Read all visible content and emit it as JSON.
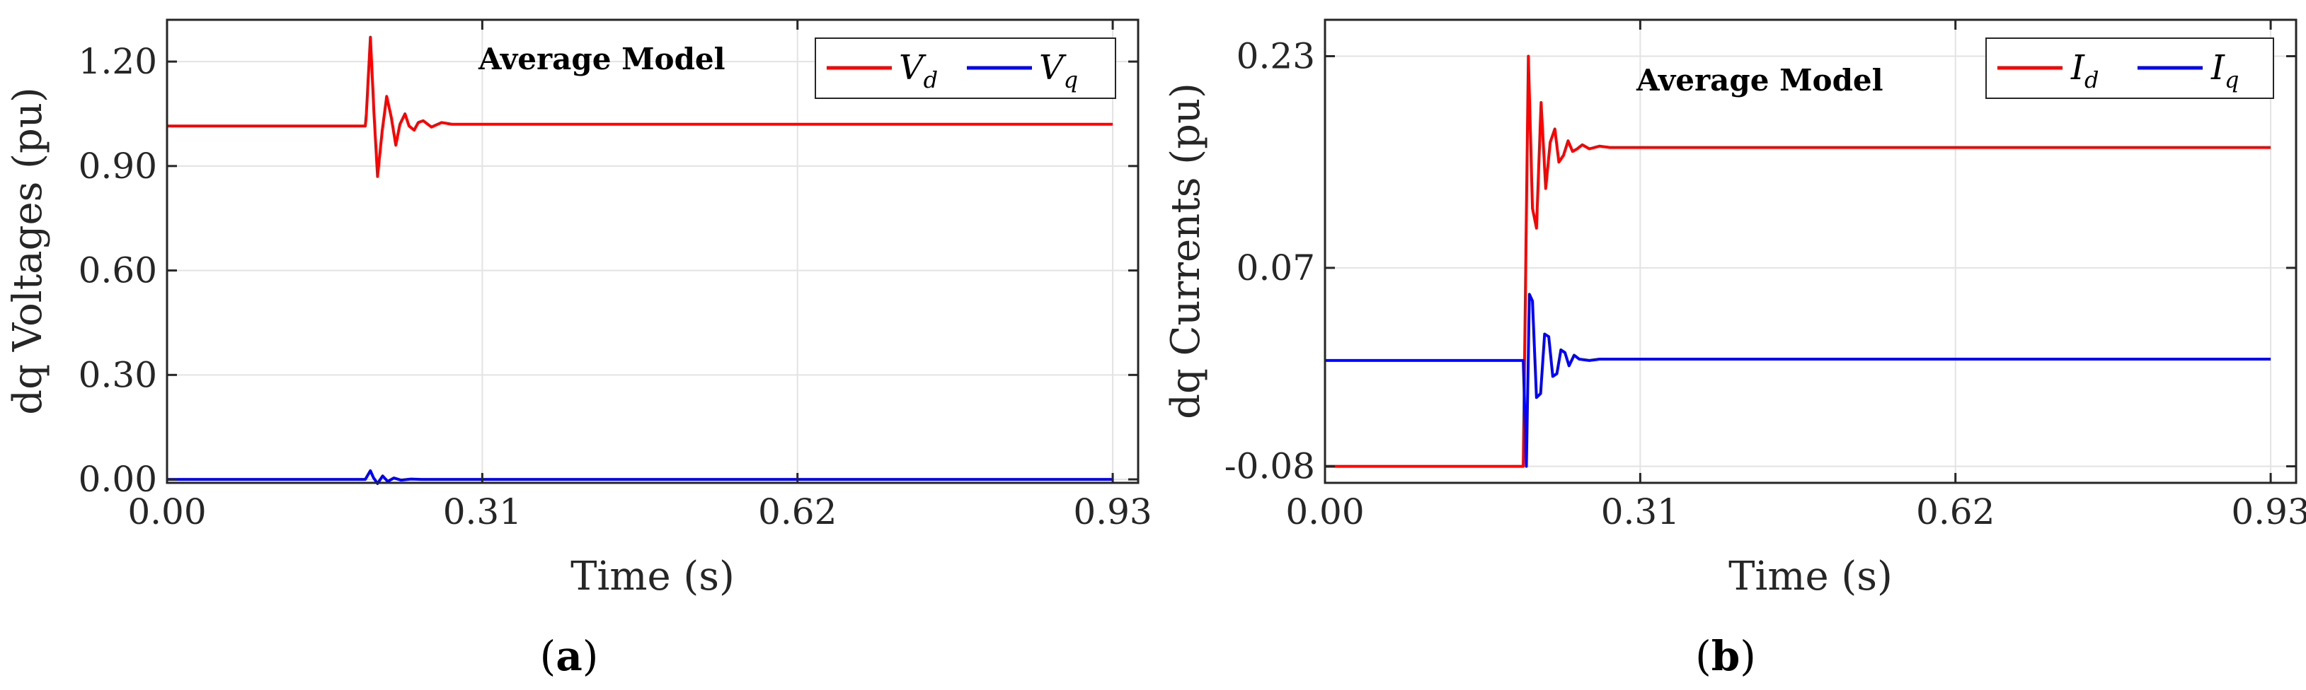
{
  "chart_data": [
    {
      "type": "line",
      "panel_label": "a",
      "annotation": "Average Model",
      "xlabel": "Time (s)",
      "ylabel": "dq Voltages (pu)",
      "xlim": [
        0,
        0.955
      ],
      "ylim": [
        -0.01,
        1.32
      ],
      "xticks": [
        0.0,
        0.31,
        0.62,
        0.93
      ],
      "xtick_labels": [
        "0.00",
        "0.31",
        "0.62",
        "0.93"
      ],
      "yticks": [
        0.0,
        0.3,
        0.6,
        0.9,
        1.2
      ],
      "ytick_labels": [
        "0.00",
        "0.30",
        "0.60",
        "0.90",
        "1.20"
      ],
      "grid": true,
      "legend_position": "top-right",
      "series": [
        {
          "name": "V",
          "name_sub": "d",
          "color": "#ff0000",
          "x": [
            0.0,
            0.195,
            0.196,
            0.2,
            0.2035,
            0.207,
            0.2115,
            0.216,
            0.2205,
            0.225,
            0.229,
            0.234,
            0.238,
            0.243,
            0.247,
            0.252,
            0.26,
            0.27,
            0.28,
            0.93
          ],
          "y": [
            1.015,
            1.015,
            1.05,
            1.27,
            1.05,
            0.87,
            1.0,
            1.1,
            1.04,
            0.96,
            1.02,
            1.05,
            1.015,
            1.003,
            1.025,
            1.03,
            1.012,
            1.025,
            1.02,
            1.02
          ]
        },
        {
          "name": "V",
          "name_sub": "q",
          "color": "#0000ff",
          "x": [
            0.0,
            0.195,
            0.2,
            0.203,
            0.207,
            0.212,
            0.217,
            0.223,
            0.23,
            0.24,
            0.25,
            0.93
          ],
          "y": [
            0.0,
            0.0,
            0.025,
            0.005,
            -0.012,
            0.01,
            -0.006,
            0.004,
            -0.002,
            0.001,
            0.0,
            0.0
          ]
        }
      ]
    },
    {
      "type": "line",
      "panel_label": "b",
      "annotation": "Average Model",
      "xlabel": "Time (s)",
      "ylabel": "dq Currents (pu)",
      "xlim": [
        0,
        0.955
      ],
      "ylim": [
        -0.0925,
        0.2575
      ],
      "xticks": [
        0.0,
        0.31,
        0.62,
        0.93
      ],
      "xtick_labels": [
        "0.00",
        "0.31",
        "0.62",
        "0.93"
      ],
      "yticks": [
        -0.08,
        0.07,
        0.23
      ],
      "ytick_labels": [
        "-0.08",
        "0.07",
        "0.23"
      ],
      "grid": true,
      "legend_position": "top-right",
      "series": [
        {
          "name": "I",
          "name_sub": "d",
          "color": "#ff0000",
          "x": [
            0.0,
            0.195,
            0.2,
            0.204,
            0.208,
            0.2125,
            0.217,
            0.2215,
            0.226,
            0.23,
            0.2345,
            0.239,
            0.2435,
            0.248,
            0.253,
            0.26,
            0.27,
            0.28,
            0.93
          ],
          "y": [
            -0.08,
            -0.08,
            0.23,
            0.115,
            0.1,
            0.195,
            0.13,
            0.165,
            0.175,
            0.15,
            0.155,
            0.166,
            0.158,
            0.16,
            0.163,
            0.16,
            0.162,
            0.161,
            0.161
          ]
        },
        {
          "name": "I",
          "name_sub": "q",
          "color": "#0000ff",
          "x": [
            0.0,
            0.19,
            0.195,
            0.198,
            0.201,
            0.204,
            0.208,
            0.212,
            0.216,
            0.22,
            0.224,
            0.228,
            0.232,
            0.236,
            0.24,
            0.245,
            0.25,
            0.26,
            0.27,
            0.93
          ],
          "y": [
            0.0,
            0.0,
            0.0,
            -0.08,
            0.05,
            0.045,
            -0.028,
            -0.025,
            0.02,
            0.018,
            -0.012,
            -0.01,
            0.008,
            0.006,
            -0.004,
            0.004,
            0.001,
            0.0,
            0.001,
            0.001
          ]
        }
      ]
    }
  ]
}
